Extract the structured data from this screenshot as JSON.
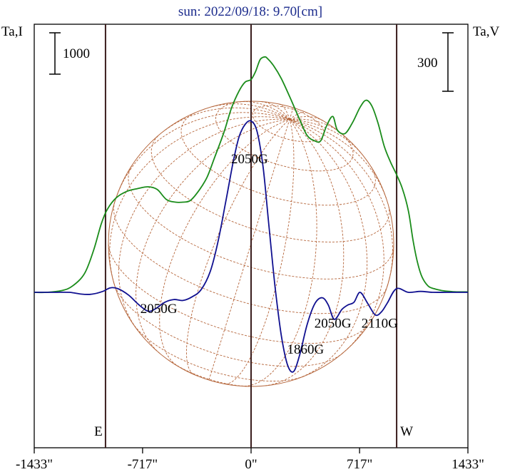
{
  "chart_data": {
    "type": "line",
    "title": "sun: 2022/09/18: 9.70[cm]",
    "left_axis_label": "Ta,I",
    "right_axis_label": "Ta,V",
    "left_scale_bar": "1000",
    "right_scale_bar": "300",
    "x_unit": "arcsec",
    "xlim": [
      -1433,
      1433
    ],
    "x_ticks": [
      {
        "value": -1433,
        "label": "-1433\""
      },
      {
        "value": -717,
        "label": "-717\""
      },
      {
        "value": 0,
        "label": "0\""
      },
      {
        "value": 717,
        "label": "717\""
      },
      {
        "value": 1433,
        "label": "1433\""
      }
    ],
    "limb_markers": [
      {
        "value": -962,
        "label": "E"
      },
      {
        "value": 0,
        "label": ""
      },
      {
        "value": 962,
        "label": "W"
      }
    ],
    "annotations": [
      {
        "text": "2050G",
        "x": -10,
        "ta_i": 1430
      },
      {
        "text": "2050G",
        "x": -610,
        "ta_i": -230
      },
      {
        "text": "1860G",
        "x": 360,
        "ta_i": -680
      },
      {
        "text": "2050G",
        "x": 540,
        "ta_i": -390
      },
      {
        "text": "2110G",
        "x": 850,
        "ta_i": -390
      }
    ],
    "series": [
      {
        "name": "",
        "axis": "left",
        "color": "#1a8c1a",
        "x": [
          -1433,
          -1350,
          -1250,
          -1180,
          -1100,
          -1040,
          -990,
          -950,
          -890,
          -820,
          -750,
          -680,
          -620,
          -560,
          -500,
          -450,
          -400,
          -340,
          -290,
          -240,
          -180,
          -130,
          -80,
          -40,
          0,
          30,
          60,
          90,
          110,
          150,
          200,
          260,
          320,
          370,
          420,
          460,
          500,
          540,
          570,
          620,
          670,
          720,
          760,
          800,
          840,
          880,
          920,
          960,
          1000,
          1040,
          1070,
          1100,
          1130,
          1170,
          1210,
          1260,
          1310,
          1360,
          1433
        ],
        "y": [
          0,
          0,
          20,
          70,
          210,
          470,
          760,
          920,
          1050,
          1120,
          1150,
          1170,
          1140,
          1030,
          1000,
          1000,
          1020,
          1140,
          1280,
          1500,
          1770,
          2040,
          2230,
          2330,
          2360,
          2450,
          2580,
          2610,
          2590,
          2510,
          2370,
          2150,
          1920,
          1740,
          1680,
          1680,
          1850,
          1950,
          1800,
          1760,
          1880,
          2050,
          2130,
          2060,
          1870,
          1620,
          1450,
          1310,
          1150,
          900,
          580,
          330,
          170,
          70,
          40,
          20,
          10,
          5,
          5
        ]
      },
      {
        "name": "",
        "axis": "left",
        "color": "#101090",
        "x": [
          -1433,
          -1300,
          -1200,
          -1120,
          -1050,
          -980,
          -930,
          -880,
          -810,
          -740,
          -680,
          -630,
          -570,
          -510,
          -450,
          -390,
          -330,
          -270,
          -220,
          -170,
          -120,
          -80,
          -40,
          0,
          40,
          80,
          120,
          160,
          200,
          240,
          280,
          320,
          370,
          420,
          470,
          510,
          550,
          600,
          640,
          680,
          720,
          770,
          820,
          860,
          900,
          960,
          1040,
          1120,
          1200,
          1300,
          1433
        ],
        "y": [
          0,
          0,
          0,
          -20,
          -20,
          10,
          50,
          40,
          -30,
          -140,
          -210,
          -180,
          -110,
          -80,
          -90,
          -50,
          30,
          230,
          550,
          980,
          1430,
          1720,
          1860,
          1900,
          1780,
          1380,
          700,
          40,
          -480,
          -800,
          -880,
          -700,
          -360,
          -130,
          -60,
          -140,
          -300,
          -190,
          -140,
          -110,
          0,
          -120,
          -250,
          -220,
          -120,
          40,
          0,
          10,
          0,
          0,
          0
        ]
      }
    ]
  }
}
